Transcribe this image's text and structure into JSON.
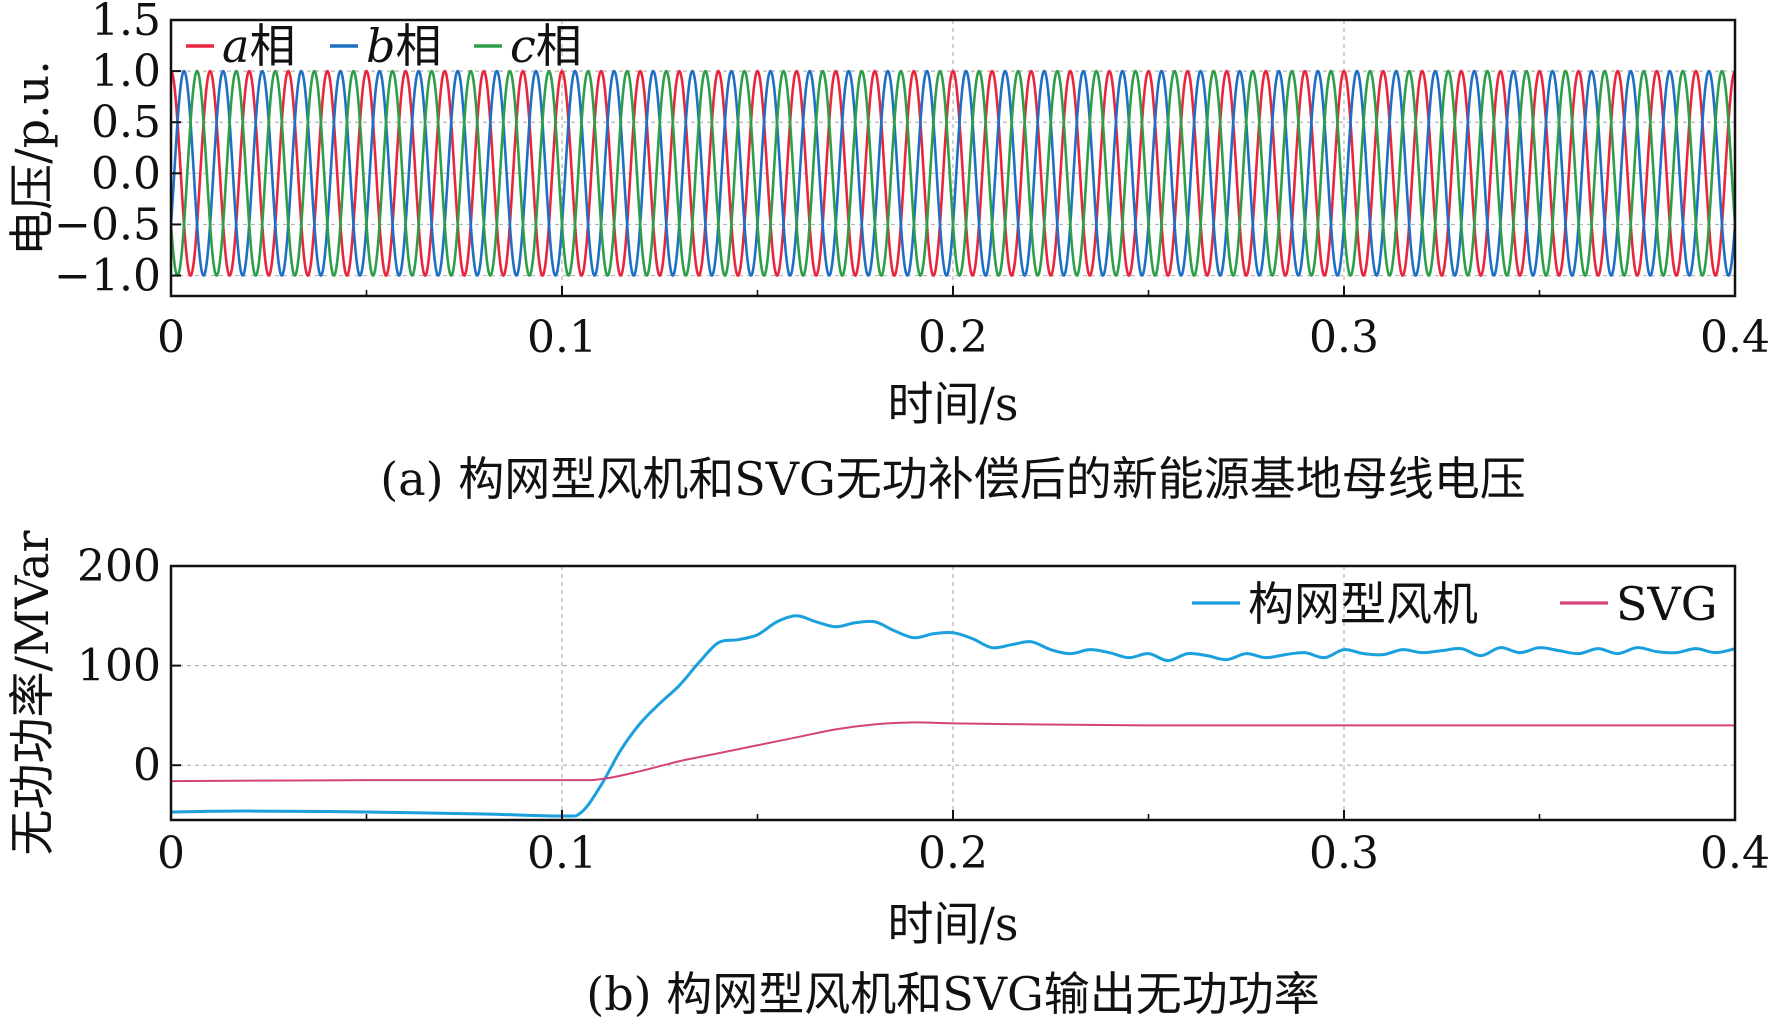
{
  "chart_data": [
    {
      "id": "a",
      "type": "line",
      "caption": "(a) 构网型风机和SVG无功补偿后的新能源基地母线电压",
      "xlabel": "时间/s",
      "ylabel": "电压/p.u.",
      "xlim": [
        0,
        0.4
      ],
      "ylim": [
        -1.2,
        1.5
      ],
      "xticks": [
        "0",
        "0.1",
        "0.2",
        "0.3",
        "0.4"
      ],
      "yticks": [
        "1.5",
        "1.0",
        "0.5",
        "0.0",
        "−0.5",
        "−1.0"
      ],
      "ytick_values": [
        1.5,
        1.0,
        0.5,
        0.0,
        -0.5,
        -1.0
      ],
      "grid": "dashed",
      "legend_position": "top-left",
      "frequency_hz": 100,
      "amplitude": 1.0,
      "series": [
        {
          "name_prefix": "a",
          "name_suffix": "相",
          "phase_deg": 90,
          "color": "#e8273f"
        },
        {
          "name_prefix": "b",
          "name_suffix": "相",
          "phase_deg": -30,
          "color": "#1f6fc5"
        },
        {
          "name_prefix": "c",
          "name_suffix": "相",
          "phase_deg": 210,
          "color": "#2e9e48"
        }
      ]
    },
    {
      "id": "b",
      "type": "line",
      "caption": "(b) 构网型风机和SVG输出无功功率",
      "xlabel": "时间/s",
      "ylabel": "无功功率/MVar",
      "xlim": [
        0,
        0.4
      ],
      "ylim": [
        -55,
        200
      ],
      "xticks": [
        "0",
        "0.1",
        "0.2",
        "0.3",
        "0.4"
      ],
      "yticks": [
        "200",
        "100",
        "0"
      ],
      "ytick_values": [
        200,
        100,
        0
      ],
      "grid": "dashed",
      "legend_position": "top-right",
      "series": [
        {
          "name": "构网型风机",
          "color": "#1aa0dc",
          "x": [
            0,
            0.02,
            0.05,
            0.08,
            0.1,
            0.105,
            0.11,
            0.115,
            0.12,
            0.125,
            0.13,
            0.135,
            0.14,
            0.145,
            0.15,
            0.155,
            0.16,
            0.165,
            0.17,
            0.175,
            0.18,
            0.185,
            0.19,
            0.195,
            0.2,
            0.205,
            0.21,
            0.215,
            0.22,
            0.225,
            0.23,
            0.235,
            0.24,
            0.245,
            0.25,
            0.255,
            0.26,
            0.265,
            0.27,
            0.275,
            0.28,
            0.285,
            0.29,
            0.295,
            0.3,
            0.305,
            0.31,
            0.315,
            0.32,
            0.325,
            0.33,
            0.335,
            0.34,
            0.345,
            0.35,
            0.355,
            0.36,
            0.365,
            0.37,
            0.375,
            0.38,
            0.385,
            0.39,
            0.395,
            0.4
          ],
          "values": [
            -47,
            -46,
            -47,
            -49,
            -51,
            -47,
            -20,
            15,
            42,
            62,
            80,
            103,
            123,
            126,
            131,
            144,
            150,
            144,
            139,
            143,
            144,
            135,
            128,
            132,
            133,
            127,
            118,
            121,
            124,
            116,
            112,
            116,
            113,
            108,
            112,
            105,
            112,
            110,
            106,
            112,
            108,
            111,
            113,
            108,
            116,
            112,
            111,
            116,
            113,
            115,
            117,
            110,
            118,
            113,
            118,
            115,
            112,
            117,
            112,
            118,
            114,
            113,
            117,
            113,
            117
          ]
        },
        {
          "name": "SVG",
          "color": "#d4447a",
          "x": [
            0,
            0.05,
            0.1,
            0.11,
            0.12,
            0.13,
            0.14,
            0.15,
            0.16,
            0.17,
            0.18,
            0.19,
            0.2,
            0.22,
            0.25,
            0.3,
            0.35,
            0.4
          ],
          "values": [
            -16,
            -15,
            -15,
            -14,
            -6,
            4,
            12,
            20,
            28,
            36,
            41,
            43,
            42,
            41,
            40,
            40,
            40,
            40
          ]
        }
      ]
    }
  ]
}
